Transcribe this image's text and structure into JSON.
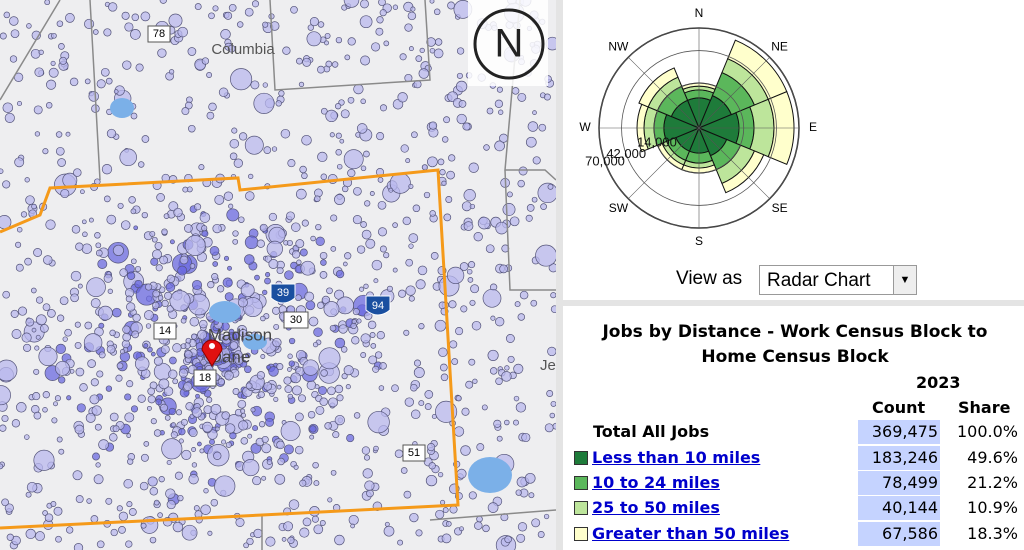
{
  "map": {
    "labels": [
      "78",
      "Columbia",
      "14",
      "Madison",
      "Dane",
      "30",
      "39",
      "94",
      "18",
      "51",
      "Je"
    ],
    "compass": "N"
  },
  "chart_data": {
    "type": "radar",
    "scale": "sqrt",
    "categories": [
      "N",
      "NE",
      "E",
      "SE",
      "S",
      "SW",
      "W",
      "NW"
    ],
    "rlim": [
      0,
      70000
    ],
    "rticks": [
      {
        "value": 14000,
        "label": "14,000"
      },
      {
        "value": 42000,
        "label": "42,000"
      },
      {
        "value": 70000,
        "label": "70,000"
      }
    ],
    "series": [
      {
        "color": "#1e7b3a",
        "values": [
          6300,
          8600,
          11200,
          6300,
          4400,
          4400,
          8600,
          6300
        ]
      },
      {
        "color": "#5bb75b",
        "values": [
          3800,
          16600,
          10000,
          7900,
          4200,
          4200,
          5600,
          7900
        ]
      },
      {
        "color": "#bde59b",
        "values": [
          2200,
          14200,
          18200,
          11000,
          2600,
          2600,
          7000,
          7000
        ]
      },
      {
        "color": "#ffffcc",
        "values": [
          1900,
          23800,
          23800,
          9100,
          3000,
          3000,
          5700,
          8400
        ]
      }
    ]
  },
  "view_as": {
    "label": "View as",
    "selected": "Radar Chart"
  },
  "table": {
    "title": "Jobs by Distance - Work Census Block to Home Census Block",
    "year": "2023",
    "headers": [
      "Count",
      "Share"
    ],
    "total": {
      "label": "Total All Jobs",
      "count": "369,475",
      "share": "100.0%"
    },
    "rows": [
      {
        "label": "Less than 10 miles",
        "count": "183,246",
        "share": "49.6%"
      },
      {
        "label": "10 to 24 miles",
        "count": "78,499",
        "share": "21.2%"
      },
      {
        "label": "25 to 50 miles",
        "count": "40,144",
        "share": "10.9%"
      },
      {
        "label": "Greater than 50 miles",
        "count": "67,586",
        "share": "18.3%"
      }
    ]
  }
}
